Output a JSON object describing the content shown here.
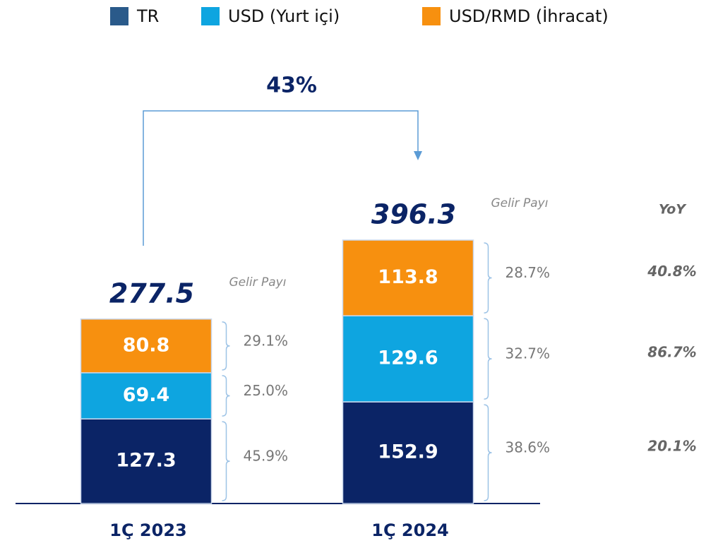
{
  "chart_data": {
    "type": "bar",
    "stacked": true,
    "categories": [
      "1Ç 2023",
      "1Ç 2024"
    ],
    "series": [
      {
        "name": "TR",
        "color": "#0b2466",
        "values": [
          127.3,
          152.9
        ],
        "shares": [
          45.9,
          38.6
        ],
        "share_labels": [
          "45.9%",
          "38.6%"
        ]
      },
      {
        "name": "USD (Yurt içi)",
        "color": "#0ea5e0",
        "values": [
          69.4,
          129.6
        ],
        "shares": [
          25.0,
          32.7
        ],
        "share_labels": [
          "25.0%",
          "32.7%"
        ]
      },
      {
        "name": "USD/RMD (İhracat)",
        "color": "#f7900f",
        "values": [
          80.8,
          113.8
        ],
        "shares": [
          29.1,
          28.7
        ],
        "share_labels": [
          "29.1%",
          "28.7%"
        ]
      }
    ],
    "totals": [
      277.5,
      396.3
    ],
    "share_title": "Gelir Payı",
    "yoy": {
      "title": "YoY",
      "values": [
        20.1,
        86.7,
        40.8
      ],
      "labels": [
        "20.1%",
        "86.7%",
        "40.8%"
      ]
    },
    "growth": {
      "value": 43,
      "label": "43%"
    }
  }
}
